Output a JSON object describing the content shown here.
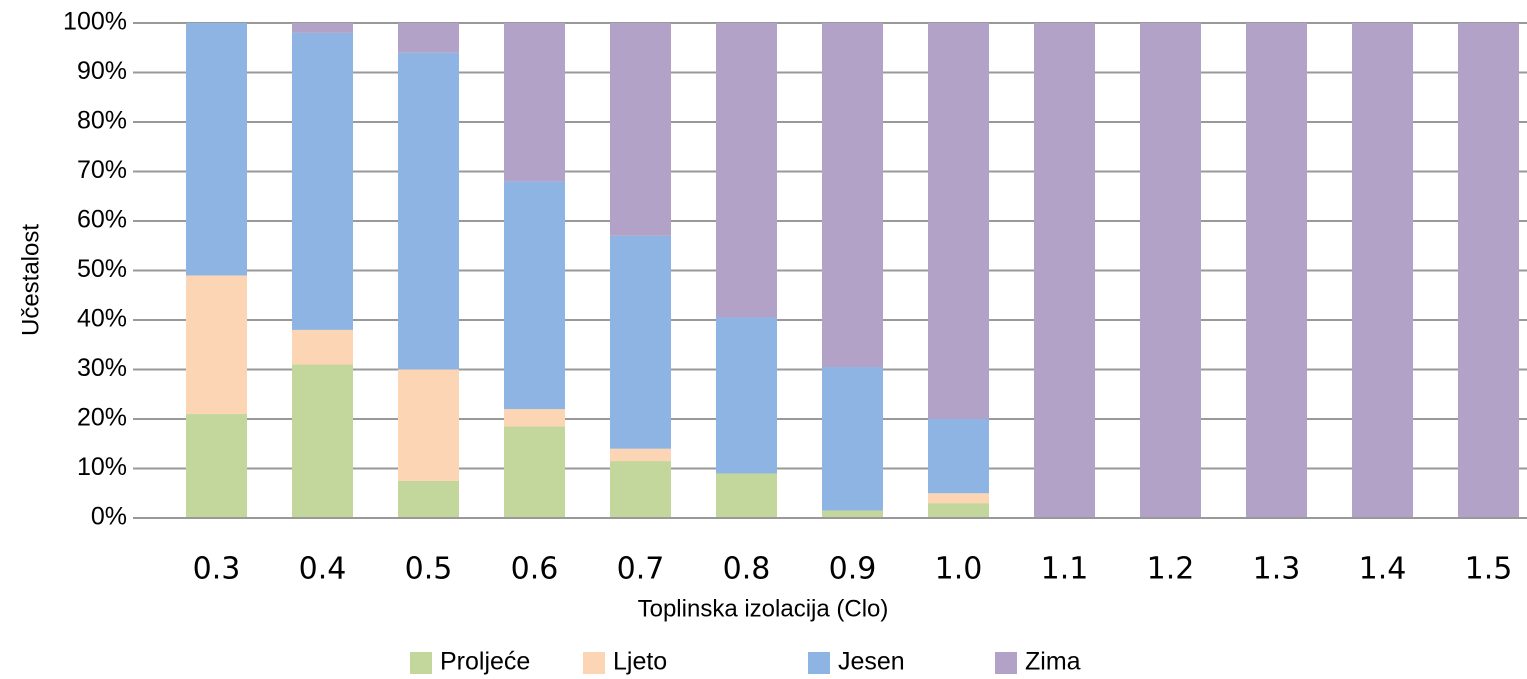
{
  "chart_data": {
    "type": "stacked_bar",
    "x_label": "Toplinska izolacija (Clo)",
    "y_label": "Učestalost",
    "categories": [
      "0.3",
      "0.4",
      "0.5",
      "0.6",
      "0.7",
      "0.8",
      "0.9",
      "1.0",
      "1.1",
      "1.2",
      "1.3",
      "1.4",
      "1.5"
    ],
    "series": [
      {
        "name": "Proljeće",
        "color": "#c3d69b",
        "values": [
          21,
          31,
          7.5,
          18.5,
          11.5,
          9,
          1.5,
          3,
          0,
          0,
          0,
          0,
          0
        ]
      },
      {
        "name": "Ljeto",
        "color": "#fcd5b5",
        "values": [
          28,
          7,
          22.5,
          3.5,
          2.5,
          0,
          0,
          2,
          0,
          0,
          0,
          0,
          0
        ]
      },
      {
        "name": "Jesen",
        "color": "#8eb4e3",
        "values": [
          51,
          60,
          64,
          46,
          43,
          31.5,
          29,
          15,
          0,
          0,
          0,
          0,
          0
        ]
      },
      {
        "name": "Zima",
        "color": "#b3a2c7",
        "values": [
          0,
          2,
          6,
          32,
          43,
          59.5,
          69.5,
          80,
          100,
          100,
          100,
          100,
          100
        ]
      }
    ],
    "ylim": [
      0,
      100
    ],
    "yticks": [
      {
        "value": 0,
        "label": "0%"
      },
      {
        "value": 10,
        "label": "10%"
      },
      {
        "value": 20,
        "label": "20%"
      },
      {
        "value": 30,
        "label": "30%"
      },
      {
        "value": 40,
        "label": "40%"
      },
      {
        "value": 50,
        "label": "50%"
      },
      {
        "value": 60,
        "label": "60%"
      },
      {
        "value": 70,
        "label": "70%"
      },
      {
        "value": 80,
        "label": "80%"
      },
      {
        "value": 90,
        "label": "90%"
      },
      {
        "value": 100,
        "label": "100%"
      }
    ],
    "grid": true
  }
}
